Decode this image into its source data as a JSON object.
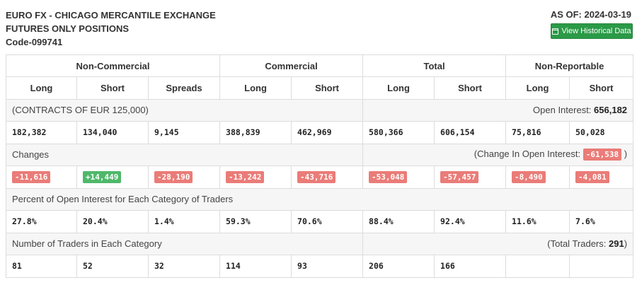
{
  "header": {
    "title_line1": "EURO FX - CHICAGO MERCANTILE EXCHANGE",
    "title_line2": "FUTURES ONLY POSITIONS",
    "code": "Code-099741",
    "as_of": "AS OF: 2024-03-19",
    "history_button": "View Historical Data"
  },
  "table": {
    "groups": [
      "Non-Commercial",
      "Commercial",
      "Total",
      "Non-Reportable"
    ],
    "subheaders": [
      "Long",
      "Short",
      "Spreads",
      "Long",
      "Short",
      "Long",
      "Short",
      "Long",
      "Short"
    ],
    "contracts_label": "(CONTRACTS OF EUR 125,000)",
    "open_interest_label": "Open Interest:",
    "open_interest_value": "656,182",
    "positions": [
      "182,382",
      "134,040",
      "9,145",
      "388,839",
      "462,969",
      "580,366",
      "606,154",
      "75,816",
      "50,028"
    ],
    "changes_label": "Changes",
    "change_oi_label": "(Change In Open Interest:",
    "change_oi_value": "-61,538",
    "change_oi_close": ")",
    "changes": [
      "-11,616",
      "+14,449",
      "-28,190",
      "-13,242",
      "-43,716",
      "-53,048",
      "-57,457",
      "-8,490",
      "-4,081"
    ],
    "percent_label": "Percent of Open Interest for Each Category of Traders",
    "percents": [
      "27.8%",
      "20.4%",
      "1.4%",
      "59.3%",
      "70.6%",
      "88.4%",
      "92.4%",
      "11.6%",
      "7.6%"
    ],
    "traders_label": "Number of Traders in Each Category",
    "total_traders_label": "(Total Traders:",
    "total_traders_value": "291",
    "total_traders_close": ")",
    "traders": [
      "81",
      "52",
      "32",
      "114",
      "93",
      "206",
      "166",
      "",
      ""
    ]
  },
  "colors": {
    "negative": "#ea7c78",
    "positive": "#4fb86a",
    "button": "#2b9a47"
  }
}
